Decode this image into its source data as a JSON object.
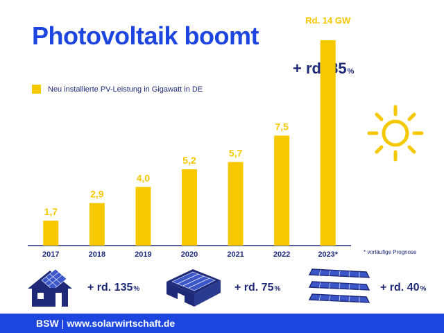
{
  "title": "Photovoltaik boomt",
  "legend": "Neu installierte PV-Leistung in Gigawatt in DE",
  "growth_2023": {
    "value": "+ rd. 85",
    "pct": "%"
  },
  "forecast_note": "* vorläufige Prognose",
  "chart_data": {
    "type": "bar",
    "categories": [
      "2017",
      "2018",
      "2019",
      "2020",
      "2021",
      "2022",
      "2023*"
    ],
    "values": [
      1.7,
      2.9,
      4.0,
      5.2,
      5.7,
      7.5,
      14
    ],
    "data_labels": [
      "1,7",
      "2,9",
      "4,0",
      "5,2",
      "5,7",
      "7,5",
      "Rd. 14 GW"
    ],
    "legend": [
      "Neu installierte PV-Leistung in Gigawatt in DE"
    ],
    "ylim": [
      0,
      14
    ],
    "grid": false,
    "colors": {
      "bar": "#f6c800",
      "label": "#f6c800",
      "axis": "#1e2a78"
    }
  },
  "segments": [
    {
      "icon": "house-solar-roof-icon",
      "value": "+ rd. 135",
      "pct": "%"
    },
    {
      "icon": "commercial-building-solar-roof-icon",
      "value": "+ rd. 75",
      "pct": "%"
    },
    {
      "icon": "ground-mounted-solar-panels-icon",
      "value": "+ rd. 40",
      "pct": "%"
    }
  ],
  "footer": {
    "brand": "BSW",
    "separator": "|",
    "url": "www.solarwirtschaft.de"
  },
  "decor": {
    "sun": "sun-icon"
  },
  "colors": {
    "blue": "#1d46e0",
    "navy": "#1e2a78",
    "yellow": "#f6c800"
  }
}
